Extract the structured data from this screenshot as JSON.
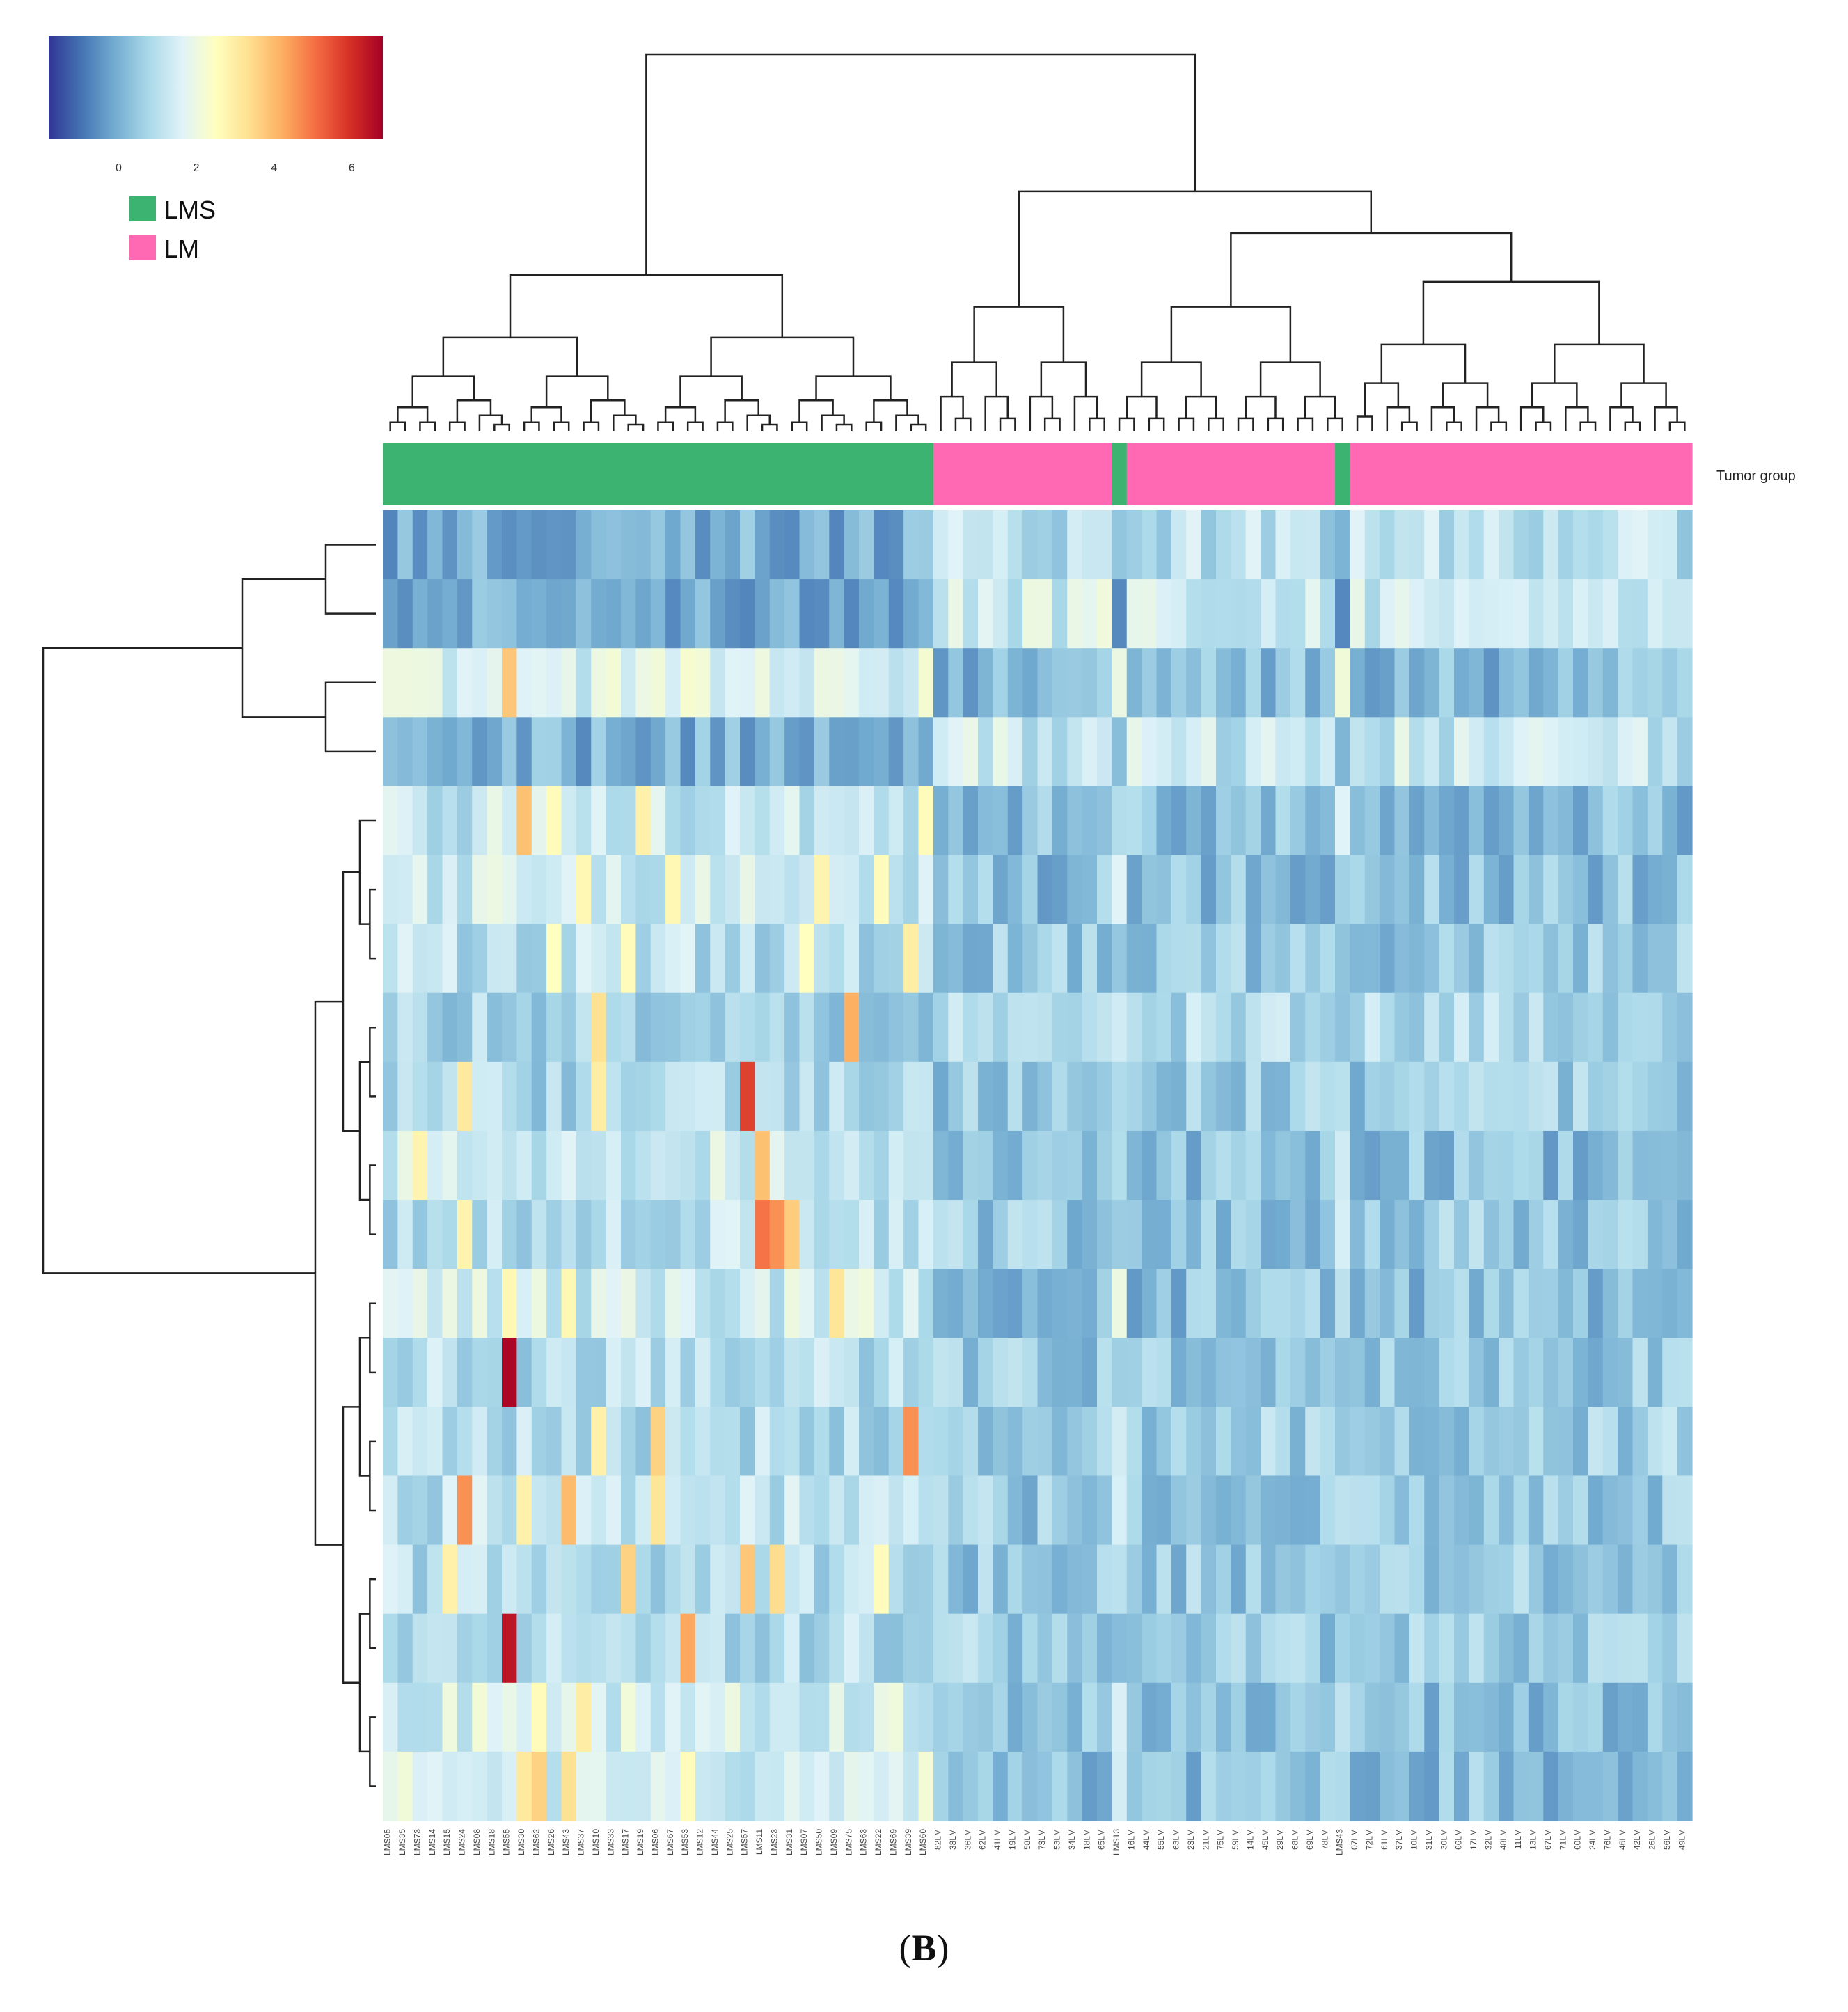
{
  "figure": {
    "panel_label_prefix": "(",
    "panel_label": "B",
    "panel_label_suffix": ")"
  },
  "chart_data": {
    "type": "heatmap",
    "title": "",
    "annotation_track": "Tumor group",
    "groups": [
      {
        "name": "LMS",
        "color": "#3cb371"
      },
      {
        "name": "LM",
        "color": "#ff69b4"
      }
    ],
    "colorbar": {
      "ticks": [
        "0",
        "2",
        "4",
        "6"
      ],
      "range": [
        -1.8,
        6.8
      ],
      "colors": [
        "#313695",
        "#4575b4",
        "#74add1",
        "#abd9e9",
        "#e0f3f8",
        "#ffffbf",
        "#fee090",
        "#fdae61",
        "#f46d43",
        "#d73027",
        "#a50026"
      ]
    },
    "columns": [
      {
        "id": "LMS05",
        "group": "LMS"
      },
      {
        "id": "LMS35",
        "group": "LMS"
      },
      {
        "id": "LMS73",
        "group": "LMS"
      },
      {
        "id": "LMS14",
        "group": "LMS"
      },
      {
        "id": "LMS15",
        "group": "LMS"
      },
      {
        "id": "LMS24",
        "group": "LMS"
      },
      {
        "id": "LMS08",
        "group": "LMS"
      },
      {
        "id": "LMS18",
        "group": "LMS"
      },
      {
        "id": "LMS55",
        "group": "LMS"
      },
      {
        "id": "LMS30",
        "group": "LMS"
      },
      {
        "id": "LMS62",
        "group": "LMS"
      },
      {
        "id": "LMS26",
        "group": "LMS"
      },
      {
        "id": "LMS43",
        "group": "LMS"
      },
      {
        "id": "LMS37",
        "group": "LMS"
      },
      {
        "id": "LMS10",
        "group": "LMS"
      },
      {
        "id": "LMS33",
        "group": "LMS"
      },
      {
        "id": "LMS17",
        "group": "LMS"
      },
      {
        "id": "LMS19",
        "group": "LMS"
      },
      {
        "id": "LMS06",
        "group": "LMS"
      },
      {
        "id": "LMS67",
        "group": "LMS"
      },
      {
        "id": "LMS53",
        "group": "LMS"
      },
      {
        "id": "LMS12",
        "group": "LMS"
      },
      {
        "id": "LMS44",
        "group": "LMS"
      },
      {
        "id": "LMS25",
        "group": "LMS"
      },
      {
        "id": "LMS57",
        "group": "LMS"
      },
      {
        "id": "LMS11",
        "group": "LMS"
      },
      {
        "id": "LMS23",
        "group": "LMS"
      },
      {
        "id": "LMS31",
        "group": "LMS"
      },
      {
        "id": "LMS07",
        "group": "LMS"
      },
      {
        "id": "LMS50",
        "group": "LMS"
      },
      {
        "id": "LMS09",
        "group": "LMS"
      },
      {
        "id": "LMS75",
        "group": "LMS"
      },
      {
        "id": "LMS63",
        "group": "LMS"
      },
      {
        "id": "LMS22",
        "group": "LMS"
      },
      {
        "id": "LMS69",
        "group": "LMS"
      },
      {
        "id": "LMS39",
        "group": "LMS"
      },
      {
        "id": "LMS60",
        "group": "LMS"
      },
      {
        "id": "82LM",
        "group": "LM"
      },
      {
        "id": "38LM",
        "group": "LM"
      },
      {
        "id": "36LM",
        "group": "LM"
      },
      {
        "id": "62LM",
        "group": "LM"
      },
      {
        "id": "41LM",
        "group": "LM"
      },
      {
        "id": "19LM",
        "group": "LM"
      },
      {
        "id": "58LM",
        "group": "LM"
      },
      {
        "id": "73LM",
        "group": "LM"
      },
      {
        "id": "53LM",
        "group": "LM"
      },
      {
        "id": "34LM",
        "group": "LM"
      },
      {
        "id": "18LM",
        "group": "LM"
      },
      {
        "id": "65LM",
        "group": "LM"
      },
      {
        "id": "LMS13",
        "group": "LMS"
      },
      {
        "id": "16LM",
        "group": "LM"
      },
      {
        "id": "44LM",
        "group": "LM"
      },
      {
        "id": "55LM",
        "group": "LM"
      },
      {
        "id": "63LM",
        "group": "LM"
      },
      {
        "id": "23LM",
        "group": "LM"
      },
      {
        "id": "21LM",
        "group": "LM"
      },
      {
        "id": "75LM",
        "group": "LM"
      },
      {
        "id": "59LM",
        "group": "LM"
      },
      {
        "id": "14LM",
        "group": "LM"
      },
      {
        "id": "45LM",
        "group": "LM"
      },
      {
        "id": "29LM",
        "group": "LM"
      },
      {
        "id": "68LM",
        "group": "LM"
      },
      {
        "id": "69LM",
        "group": "LM"
      },
      {
        "id": "78LM",
        "group": "LM"
      },
      {
        "id": "LMS43",
        "group": "LMS"
      },
      {
        "id": "07LM",
        "group": "LM"
      },
      {
        "id": "72LM",
        "group": "LM"
      },
      {
        "id": "61LM",
        "group": "LM"
      },
      {
        "id": "37LM",
        "group": "LM"
      },
      {
        "id": "10LM",
        "group": "LM"
      },
      {
        "id": "31LM",
        "group": "LM"
      },
      {
        "id": "30LM",
        "group": "LM"
      },
      {
        "id": "66LM",
        "group": "LM"
      },
      {
        "id": "17LM",
        "group": "LM"
      },
      {
        "id": "32LM",
        "group": "LM"
      },
      {
        "id": "48LM",
        "group": "LM"
      },
      {
        "id": "11LM",
        "group": "LM"
      },
      {
        "id": "13LM",
        "group": "LM"
      },
      {
        "id": "67LM",
        "group": "LM"
      },
      {
        "id": "71LM",
        "group": "LM"
      },
      {
        "id": "60LM",
        "group": "LM"
      },
      {
        "id": "24LM",
        "group": "LM"
      },
      {
        "id": "76LM",
        "group": "LM"
      },
      {
        "id": "46LM",
        "group": "LM"
      },
      {
        "id": "42LM",
        "group": "LM"
      },
      {
        "id": "26LM",
        "group": "LM"
      },
      {
        "id": "56LM",
        "group": "LM"
      },
      {
        "id": "49LM",
        "group": "LM"
      }
    ],
    "rows": [
      {
        "id": "r1",
        "base_lms": 0.0,
        "base_lm": 1.0,
        "hi": []
      },
      {
        "id": "r2",
        "base_lms": 0.0,
        "base_lm": 1.4,
        "hi": []
      },
      {
        "id": "r3",
        "base_lms": 1.6,
        "base_lm": 0.2,
        "hi": [
          [
            8,
            3.8
          ]
        ]
      },
      {
        "id": "r4",
        "base_lms": 0.0,
        "base_lm": 1.2,
        "hi": []
      },
      {
        "id": "r5",
        "base_lms": 1.2,
        "base_lm": 0.3,
        "hi": [
          [
            9,
            3.9
          ],
          [
            11,
            2.6
          ],
          [
            17,
            2.9
          ],
          [
            36,
            2.6
          ]
        ]
      },
      {
        "id": "r6",
        "base_lms": 1.3,
        "base_lm": 0.3,
        "hi": [
          [
            13,
            2.7
          ],
          [
            19,
            2.7
          ],
          [
            29,
            2.8
          ],
          [
            33,
            2.6
          ]
        ]
      },
      {
        "id": "r7",
        "base_lms": 1.0,
        "base_lm": 0.5,
        "hi": [
          [
            11,
            2.5
          ],
          [
            16,
            2.6
          ],
          [
            28,
            2.5
          ],
          [
            35,
            3.0
          ]
        ]
      },
      {
        "id": "r8",
        "base_lms": 0.7,
        "base_lm": 0.9,
        "hi": [
          [
            14,
            3.3
          ],
          [
            31,
            4.2
          ]
        ]
      },
      {
        "id": "r9",
        "base_lms": 0.8,
        "base_lm": 0.5,
        "hi": [
          [
            5,
            3.1
          ],
          [
            14,
            3.0
          ],
          [
            24,
            5.7
          ]
        ]
      },
      {
        "id": "r10",
        "base_lms": 1.3,
        "base_lm": 0.3,
        "hi": [
          [
            2,
            2.8
          ],
          [
            25,
            3.9
          ]
        ]
      },
      {
        "id": "r11",
        "base_lms": 1.0,
        "base_lm": 0.5,
        "hi": [
          [
            5,
            2.8
          ],
          [
            25,
            5.0
          ],
          [
            26,
            4.6
          ],
          [
            27,
            3.7
          ]
        ]
      },
      {
        "id": "r12",
        "base_lms": 1.4,
        "base_lm": 0.3,
        "hi": [
          [
            8,
            2.7
          ],
          [
            12,
            2.7
          ],
          [
            30,
            3.2
          ]
        ]
      },
      {
        "id": "r13",
        "base_lms": 0.9,
        "base_lm": 0.5,
        "hi": [
          [
            8,
            6.7
          ]
        ]
      },
      {
        "id": "r14",
        "base_lms": 0.9,
        "base_lm": 0.6,
        "hi": [
          [
            14,
            2.9
          ],
          [
            18,
            3.6
          ],
          [
            35,
            4.6
          ]
        ]
      },
      {
        "id": "r15",
        "base_lms": 1.1,
        "base_lm": 0.5,
        "hi": [
          [
            5,
            4.6
          ],
          [
            9,
            2.9
          ],
          [
            12,
            4.0
          ],
          [
            18,
            3.2
          ]
        ]
      },
      {
        "id": "r16",
        "base_lms": 1.0,
        "base_lm": 0.5,
        "hi": [
          [
            4,
            2.9
          ],
          [
            16,
            3.6
          ],
          [
            24,
            3.8
          ],
          [
            26,
            3.4
          ],
          [
            33,
            2.6
          ]
        ]
      },
      {
        "id": "r17",
        "base_lms": 0.9,
        "base_lm": 0.6,
        "hi": [
          [
            8,
            6.4
          ],
          [
            20,
            4.3
          ]
        ]
      },
      {
        "id": "r18",
        "base_lms": 1.5,
        "base_lm": 0.3,
        "hi": [
          [
            10,
            2.6
          ],
          [
            13,
            3.0
          ]
        ]
      },
      {
        "id": "r19",
        "base_lms": 1.5,
        "base_lm": 0.3,
        "hi": [
          [
            9,
            3.1
          ],
          [
            10,
            3.6
          ],
          [
            12,
            3.3
          ],
          [
            20,
            2.6
          ]
        ]
      }
    ]
  }
}
